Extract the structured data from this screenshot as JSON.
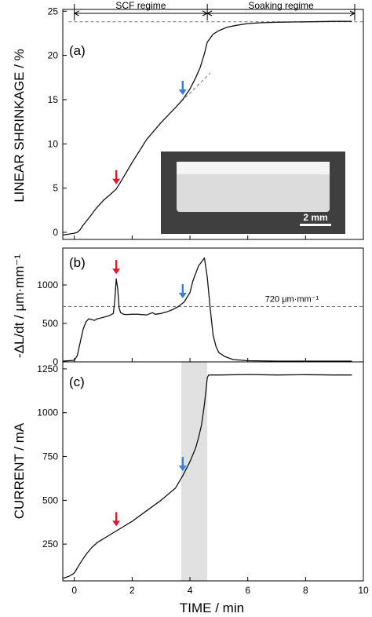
{
  "chart_data": [
    {
      "panel": "a",
      "type": "line",
      "panel_label": "(a)",
      "ylabel": "LINEAR SHRINKAGE / %",
      "xlim": [
        -0.4,
        10
      ],
      "ylim": [
        -0.8,
        25.2
      ],
      "yticks": [
        0,
        5,
        10,
        15,
        20,
        25
      ],
      "regimes": [
        {
          "label": "SCF regime",
          "x0": 0,
          "x1": 4.6
        },
        {
          "label": "Soaking regime",
          "x0": 4.6,
          "x1": 9.7
        }
      ],
      "reference_line": {
        "y": 23.8
      },
      "extrapolation": {
        "x": [
          3.7,
          4.7
        ],
        "y": [
          14.8,
          18.0
        ]
      },
      "inset_scale": "2 mm",
      "markers": [
        {
          "x": 1.45,
          "color": "#e8152a"
        },
        {
          "x": 3.75,
          "color": "#3a7fd5"
        }
      ],
      "series": [
        {
          "x": [
            -0.4,
            0,
            0.1,
            0.2,
            0.3,
            0.5,
            0.75,
            1.0,
            1.25,
            1.45,
            1.6,
            2.0,
            2.5,
            3.0,
            3.5,
            3.75,
            4.0,
            4.2,
            4.35,
            4.5,
            4.6,
            4.8,
            5.0,
            5.3,
            5.6,
            6.0,
            6.5,
            7.0,
            8.0,
            9.0,
            9.6
          ],
          "y": [
            -0.3,
            -0.1,
            0,
            0.3,
            0.8,
            1.6,
            2.7,
            3.6,
            4.3,
            4.9,
            5.7,
            7.9,
            10.5,
            12.4,
            14.1,
            15.0,
            16.2,
            17.5,
            18.6,
            20.2,
            21.5,
            22.4,
            22.8,
            23.2,
            23.4,
            23.6,
            23.7,
            23.75,
            23.8,
            23.85,
            23.85
          ]
        }
      ]
    },
    {
      "panel": "b",
      "type": "line",
      "panel_label": "(b)",
      "ylabel": "-ΔL/dt / μm·mm⁻¹",
      "xlim": [
        -0.4,
        10
      ],
      "ylim": [
        0,
        1480
      ],
      "yticks": [
        0,
        500,
        1000
      ],
      "reference_line": {
        "y": 720,
        "label": "720 μm·mm⁻¹"
      },
      "markers": [
        {
          "x": 1.45,
          "color": "#e8152a"
        },
        {
          "x": 3.75,
          "color": "#3a7fd5"
        }
      ],
      "series": [
        {
          "x": [
            -0.4,
            0,
            0.1,
            0.2,
            0.3,
            0.4,
            0.5,
            0.6,
            0.7,
            0.8,
            1.0,
            1.2,
            1.35,
            1.4,
            1.45,
            1.5,
            1.55,
            1.6,
            1.7,
            1.8,
            2.0,
            2.2,
            2.5,
            2.7,
            2.8,
            3.0,
            3.2,
            3.4,
            3.6,
            3.8,
            4.0,
            4.1,
            4.2,
            4.3,
            4.4,
            4.5,
            4.6,
            4.7,
            4.8,
            4.9,
            5.0,
            5.2,
            5.5,
            6.0,
            7.0,
            8.0,
            9.0,
            9.6
          ],
          "y": [
            10,
            20,
            80,
            250,
            420,
            520,
            560,
            550,
            540,
            560,
            580,
            600,
            630,
            800,
            1080,
            950,
            700,
            640,
            620,
            615,
            620,
            620,
            610,
            640,
            620,
            630,
            650,
            680,
            720,
            780,
            900,
            1050,
            1150,
            1250,
            1300,
            1350,
            1100,
            700,
            350,
            200,
            120,
            70,
            30,
            15,
            10,
            10,
            10,
            10
          ]
        }
      ]
    },
    {
      "panel": "c",
      "type": "line",
      "panel_label": "(c)",
      "xlabel": "TIME  / min",
      "ylabel": "CURRENT  /  mA",
      "xlim": [
        -0.4,
        10
      ],
      "ylim": [
        40,
        1290
      ],
      "xticks": [
        0,
        2,
        4,
        6,
        8,
        10
      ],
      "yticks": [
        250,
        500,
        750,
        1000,
        1250
      ],
      "shaded_band": {
        "x0": 3.7,
        "x1": 4.6,
        "color": "#e1e1e1"
      },
      "markers": [
        {
          "x": 1.45,
          "color": "#e8152a"
        },
        {
          "x": 3.75,
          "color": "#3a7fd5"
        }
      ],
      "series": [
        {
          "x": [
            -0.4,
            -0.2,
            0,
            0.2,
            0.4,
            0.6,
            0.8,
            1.0,
            1.2,
            1.4,
            1.6,
            2.0,
            2.5,
            3.0,
            3.5,
            3.75,
            4.0,
            4.2,
            4.3,
            4.4,
            4.5,
            4.55,
            4.6,
            4.65,
            5.0,
            6.0,
            7.0,
            8.0,
            9.0,
            9.6
          ],
          "y": [
            55,
            65,
            85,
            140,
            190,
            230,
            260,
            280,
            300,
            320,
            340,
            380,
            440,
            500,
            570,
            640,
            720,
            800,
            860,
            930,
            1050,
            1120,
            1200,
            1215,
            1215,
            1218,
            1215,
            1217,
            1215,
            1215
          ]
        }
      ]
    }
  ]
}
